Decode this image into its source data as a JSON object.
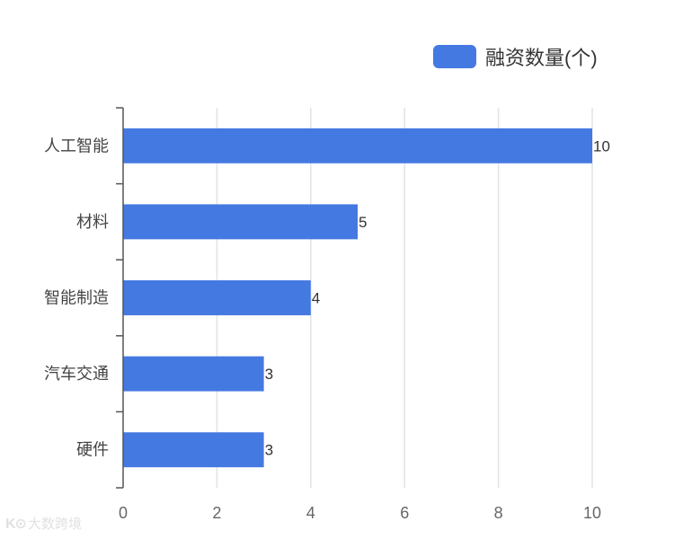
{
  "chart_data": {
    "type": "bar",
    "orientation": "horizontal",
    "categories": [
      "人工智能",
      "材料",
      "智能制造",
      "汽车交通",
      "硬件"
    ],
    "series": [
      {
        "name": "融资数量(个)",
        "values": [
          10,
          5,
          4,
          3,
          3
        ]
      }
    ],
    "title": "",
    "xlabel": "",
    "ylabel": "",
    "xlim": [
      0,
      10
    ],
    "x_ticks": [
      0,
      2,
      4,
      6,
      8,
      10
    ],
    "grid": true,
    "legend_position": "top-right",
    "show_data_labels": true
  },
  "colors": {
    "bar": "#4479e2",
    "grid": "#dfe3e8",
    "axis": "#555555"
  },
  "watermark": {
    "logo": "K⊙",
    "text": "大数跨境"
  }
}
